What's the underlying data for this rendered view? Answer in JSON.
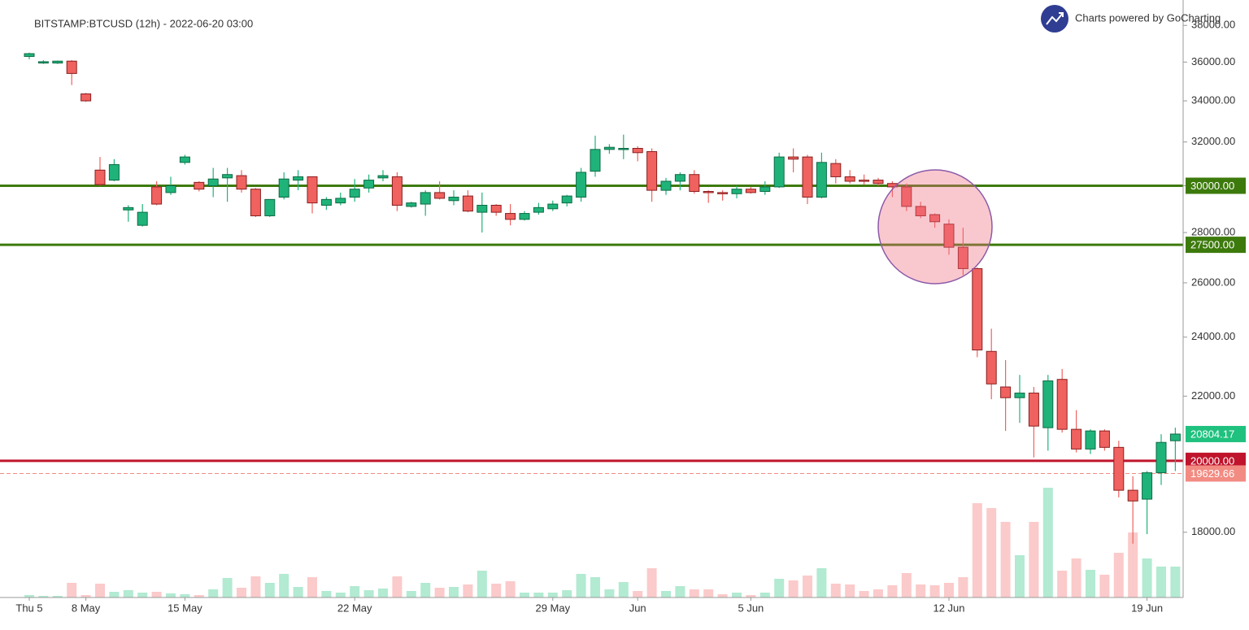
{
  "chart_data": {
    "type": "candlestick",
    "title": "BITSTAMP:BTCUSD (12h) - 2022-06-20 03:00",
    "watermark": "Charts powered by GoCharting",
    "categories": [
      "Thu 5",
      null,
      null,
      null,
      "8 May",
      null,
      null,
      null,
      null,
      null,
      null,
      "15 May",
      null,
      null,
      null,
      null,
      null,
      null,
      null,
      null,
      null,
      null,
      null,
      "22 May",
      null,
      null,
      null,
      null,
      null,
      null,
      null,
      null,
      null,
      null,
      null,
      null,
      null,
      "29 May",
      null,
      null,
      null,
      null,
      null,
      "Jun",
      null,
      null,
      null,
      null,
      null,
      null,
      null,
      "5 Jun",
      null,
      null,
      null,
      null,
      null,
      null,
      null,
      null,
      null,
      null,
      null,
      null,
      null,
      "12 Jun",
      null,
      null,
      null,
      null,
      null,
      null,
      null,
      null,
      null,
      null,
      null,
      null,
      null,
      "19 Jun",
      null,
      null
    ],
    "open": [
      36300,
      35950,
      35950,
      36050,
      34350,
      30700,
      30250,
      28950,
      28300,
      29950,
      29700,
      31050,
      30150,
      30000,
      30350,
      30450,
      29850,
      28700,
      29500,
      30250,
      30400,
      29150,
      29250,
      29500,
      29900,
      30350,
      30400,
      29100,
      29200,
      29700,
      29350,
      29550,
      28850,
      29150,
      28800,
      28550,
      28850,
      29000,
      29250,
      29500,
      30650,
      31650,
      31650,
      31700,
      31550,
      29800,
      30200,
      30500,
      29750,
      29700,
      29650,
      29850,
      29750,
      29950,
      31300,
      31300,
      29500,
      31000,
      30400,
      30250,
      30250,
      30100,
      29950,
      29100,
      28750,
      28350,
      27400,
      26550,
      23500,
      22300,
      21950,
      22100,
      21000,
      22550,
      20950,
      20350,
      20900,
      20400,
      19150,
      18900,
      19650,
      20600
    ],
    "high": [
      36500,
      36100,
      36080,
      36100,
      34400,
      31300,
      31200,
      29150,
      29200,
      30200,
      30400,
      31400,
      30200,
      30800,
      30800,
      30700,
      29900,
      29400,
      30600,
      30700,
      30400,
      29500,
      29700,
      30300,
      30500,
      30700,
      30600,
      29300,
      29800,
      30200,
      29800,
      29800,
      29700,
      29200,
      29200,
      28900,
      29250,
      29350,
      29600,
      30800,
      32300,
      31900,
      32350,
      31800,
      31700,
      30350,
      30600,
      30700,
      29800,
      29800,
      30000,
      29950,
      30200,
      31500,
      31700,
      31400,
      31500,
      31200,
      30700,
      30500,
      30350,
      30200,
      30100,
      29300,
      28800,
      28550,
      28200,
      26600,
      24300,
      23200,
      22700,
      22300,
      22700,
      22900,
      21550,
      20950,
      20950,
      20600,
      19550,
      19700,
      20800,
      21000
    ],
    "low": [
      36150,
      35900,
      35900,
      34800,
      33950,
      30000,
      30200,
      28450,
      28250,
      29150,
      29600,
      30950,
      29750,
      29500,
      29300,
      29700,
      28650,
      28650,
      29400,
      29800,
      28800,
      28950,
      29150,
      29300,
      29700,
      30200,
      28900,
      29050,
      28700,
      29400,
      29150,
      28850,
      28000,
      28700,
      28300,
      28500,
      28750,
      28900,
      29100,
      29300,
      30400,
      31450,
      31200,
      31100,
      29300,
      29600,
      29800,
      29650,
      29250,
      29350,
      29450,
      29650,
      29600,
      29900,
      30600,
      29200,
      29450,
      30100,
      30100,
      30050,
      30000,
      29500,
      28900,
      28600,
      28200,
      27100,
      26300,
      23300,
      21900,
      20900,
      21150,
      20100,
      20300,
      20850,
      20250,
      20200,
      20300,
      18950,
      17700,
      17950,
      19300,
      19700
    ],
    "close": [
      36450,
      36020,
      36050,
      35400,
      34000,
      30050,
      30950,
      29050,
      28850,
      29200,
      30000,
      31300,
      29850,
      30300,
      30500,
      29850,
      28700,
      29400,
      30300,
      30400,
      29250,
      29400,
      29450,
      29850,
      30250,
      30450,
      29150,
      29250,
      29700,
      29450,
      29500,
      28900,
      29150,
      28850,
      28550,
      28800,
      29050,
      29200,
      29550,
      30600,
      31650,
      31750,
      31700,
      31500,
      29800,
      30200,
      30500,
      29750,
      29700,
      29650,
      29850,
      29700,
      29950,
      31300,
      31200,
      29500,
      31050,
      30400,
      30200,
      30200,
      30100,
      29950,
      29100,
      28700,
      28450,
      27400,
      26550,
      23550,
      22400,
      21950,
      22100,
      21050,
      22500,
      20950,
      20350,
      20900,
      20400,
      19150,
      18850,
      19650,
      20550,
      20804.17
    ],
    "volume": [
      3,
      2,
      2,
      18,
      3,
      17,
      7,
      9,
      6,
      7,
      5,
      4,
      3,
      10,
      24,
      12,
      26,
      18,
      29,
      13,
      25,
      8,
      6,
      14,
      9,
      11,
      26,
      8,
      18,
      12,
      13,
      16,
      33,
      17,
      20,
      6,
      6,
      6,
      9,
      29,
      25,
      10,
      19,
      8,
      36,
      8,
      14,
      10,
      10,
      4,
      6,
      3,
      6,
      23,
      21,
      27,
      36,
      17,
      16,
      8,
      10,
      15,
      30,
      16,
      15,
      18,
      25,
      116,
      110,
      93,
      52,
      93,
      135,
      33,
      48,
      34,
      28,
      55,
      80,
      48,
      38,
      38
    ],
    "up_color": "#1fb37a",
    "down_color": "#f0625f",
    "up_volume_color": "#b2ead2",
    "down_volume_color": "#fbcaca",
    "log_scale": true,
    "ylim": [
      16350,
      39450
    ],
    "yticks": [
      {
        "value": 18000,
        "label": "18000.00"
      },
      {
        "value": 22000,
        "label": "22000.00"
      },
      {
        "value": 24000,
        "label": "24000.00"
      },
      {
        "value": 26000,
        "label": "26000.00"
      },
      {
        "value": 28000,
        "label": "28000.00"
      },
      {
        "value": 30000,
        "label": "30000.00"
      },
      {
        "value": 32000,
        "label": "32000.00"
      },
      {
        "value": 34000,
        "label": "34000.00"
      },
      {
        "value": 36000,
        "label": "36000.00"
      },
      {
        "value": 38000,
        "label": "38000.00"
      }
    ],
    "levels": [
      {
        "value": 30000,
        "label": "30000.00",
        "color": "#3d7a0c",
        "style": "solid"
      },
      {
        "value": 27500,
        "label": "27500.00",
        "color": "#3d7a0c",
        "style": "solid"
      },
      {
        "value": 20000,
        "label": "20000.00",
        "color": "#c0142c",
        "style": "solid"
      },
      {
        "value": 19629.66,
        "label": "19629.66",
        "color": "#f28b82",
        "style": "dashed"
      }
    ],
    "last_price": {
      "value": 20804.17,
      "label": "20804.17",
      "color": "#1fc17e"
    }
  }
}
